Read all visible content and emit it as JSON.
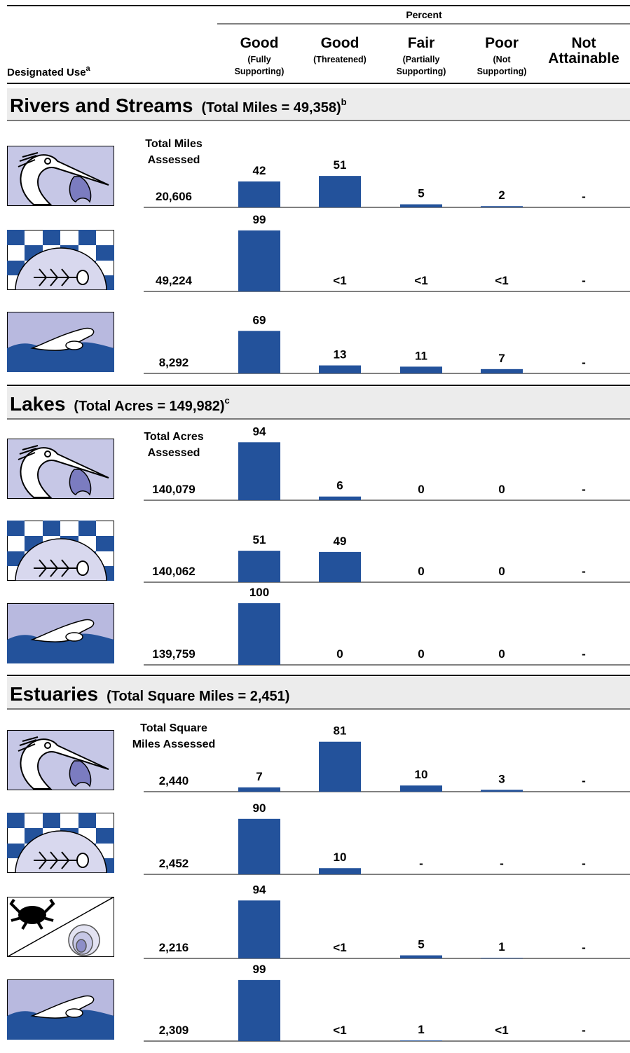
{
  "header": {
    "percent": "Percent",
    "designated_use": "Designated Use",
    "designated_use_note": "a",
    "columns": [
      {
        "title": [
          "Good"
        ],
        "sub": [
          "(Fully",
          "Supporting)"
        ]
      },
      {
        "title": [
          "Good"
        ],
        "sub": [
          "(Threatened)"
        ]
      },
      {
        "title": [
          "Fair"
        ],
        "sub": [
          "(Partially",
          "Supporting)"
        ]
      },
      {
        "title": [
          "Poor"
        ],
        "sub": [
          "(Not",
          "Supporting)"
        ]
      },
      {
        "title": [
          "Not",
          "Attainable"
        ],
        "sub": []
      }
    ]
  },
  "sections": [
    {
      "title": "Rivers and Streams",
      "subtitle": "(Total Miles = 49,358)",
      "note": "b",
      "total_label": [
        "Total Miles",
        "Assessed"
      ],
      "rows": [
        {
          "total": "20,606",
          "values": [
            42,
            51,
            5,
            2,
            null
          ],
          "value_labels": [
            null,
            null,
            null,
            null,
            "-"
          ]
        },
        {
          "total": "49,224",
          "values": [
            99,
            null,
            null,
            null,
            null
          ],
          "value_labels": [
            null,
            "<1",
            "<1",
            "<1",
            "-"
          ]
        },
        {
          "total": "8,292",
          "values": [
            69,
            13,
            11,
            7,
            null
          ],
          "value_labels": [
            null,
            null,
            null,
            null,
            "-"
          ]
        }
      ]
    },
    {
      "title": "Lakes",
      "subtitle": "(Total Acres = 149,982)",
      "note": "c",
      "total_label": [
        "Total Acres",
        "Assessed"
      ],
      "rows": [
        {
          "total": "140,079",
          "values": [
            94,
            6,
            0,
            0,
            null
          ],
          "value_labels": [
            null,
            null,
            null,
            null,
            "-"
          ]
        },
        {
          "total": "140,062",
          "values": [
            51,
            49,
            0,
            0,
            null
          ],
          "value_labels": [
            null,
            null,
            null,
            null,
            "-"
          ]
        },
        {
          "total": "139,759",
          "values": [
            100,
            0,
            0,
            0,
            null
          ],
          "value_labels": [
            null,
            null,
            null,
            null,
            "-"
          ]
        }
      ]
    },
    {
      "title": "Estuaries",
      "subtitle": "(Total Square Miles = 2,451)",
      "note": null,
      "total_label": [
        "Total Square",
        "Miles Assessed"
      ],
      "rows": [
        {
          "total": "2,440",
          "values": [
            7,
            81,
            10,
            3,
            null
          ],
          "value_labels": [
            null,
            null,
            null,
            null,
            "-"
          ]
        },
        {
          "total": "2,452",
          "values": [
            90,
            10,
            null,
            null,
            null
          ],
          "value_labels": [
            null,
            null,
            "-",
            "-",
            "-"
          ]
        },
        {
          "total": "2,216",
          "values": [
            94,
            null,
            5,
            1,
            null
          ],
          "value_labels": [
            null,
            "<1",
            null,
            null,
            "-"
          ]
        },
        {
          "total": "2,309",
          "values": [
            99,
            null,
            1,
            null,
            null
          ],
          "value_labels": [
            null,
            "<1",
            null,
            "<1",
            "-"
          ]
        }
      ]
    }
  ]
}
